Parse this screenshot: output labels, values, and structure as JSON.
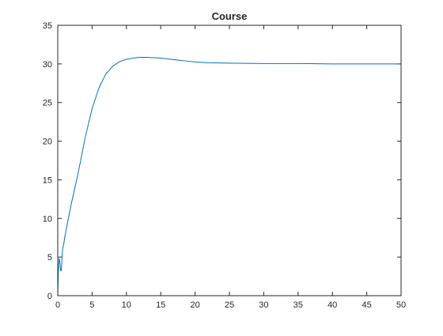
{
  "chart_data": {
    "type": "line",
    "title": "Course",
    "xlabel": "",
    "ylabel": "",
    "xlim": [
      0,
      50
    ],
    "ylim": [
      0,
      35
    ],
    "xticks": [
      0,
      5,
      10,
      15,
      20,
      25,
      30,
      35,
      40,
      45,
      50
    ],
    "yticks": [
      0,
      5,
      10,
      15,
      20,
      25,
      30,
      35
    ],
    "grid": false,
    "legend": "none",
    "series": [
      {
        "color": "#0072bd",
        "x": [
          0,
          0.1,
          0.2,
          0.3,
          0.4,
          0.5,
          0.6,
          0.7,
          0.8,
          0.9,
          1.0,
          1.5,
          2,
          3,
          4,
          5,
          6,
          7,
          8,
          9,
          10,
          11,
          12,
          13,
          14,
          15,
          16,
          17,
          18,
          19,
          20,
          22,
          25,
          30,
          35,
          40,
          45,
          50
        ],
        "y": [
          0,
          3.5,
          4.8,
          4.5,
          3.3,
          3.2,
          4.5,
          6.0,
          6.4,
          6.8,
          7.5,
          9.8,
          12.0,
          16.0,
          20.5,
          24.2,
          26.9,
          28.7,
          29.7,
          30.3,
          30.6,
          30.75,
          30.85,
          30.85,
          30.8,
          30.75,
          30.65,
          30.55,
          30.45,
          30.35,
          30.25,
          30.15,
          30.1,
          30.05,
          30.05,
          30.0,
          30.0,
          30.0
        ]
      }
    ]
  }
}
